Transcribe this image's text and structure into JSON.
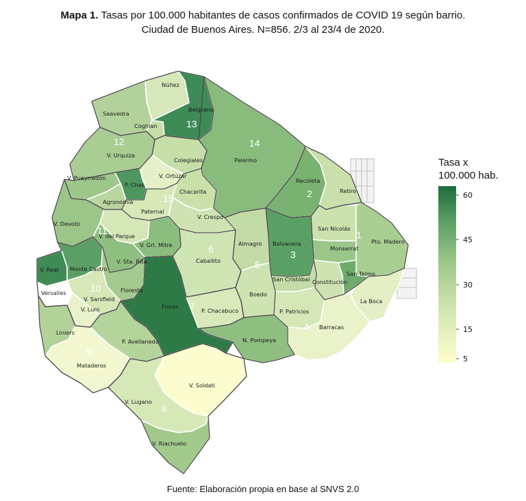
{
  "title": {
    "bold": "Mapa 1.",
    "line1": " Tasas por 100.000 habitantes de casos confirmados de COVID 19 según barrio.",
    "line2": "Ciudad de Buenos Aires. N=856. 2/3 al 23/4 de 2020."
  },
  "legend": {
    "title_line1": "Tasa x",
    "title_line2": "100.000 hab.",
    "ticks": [
      "60",
      "45",
      "30",
      "15",
      "5"
    ],
    "color_low": "#fdfecb",
    "color_high": "#1d6b3c"
  },
  "source": "Fuente: Elaboración propia en base al SNVS 2.0",
  "map": {
    "barrios": [
      {
        "name": "Núñez",
        "color": "#d6e7b9"
      },
      {
        "name": "Saavedra",
        "color": "#b3d29b"
      },
      {
        "name": "Coghlan",
        "color": "#c5dda9"
      },
      {
        "name": "Belgrano",
        "color": "#3e8b57"
      },
      {
        "name": "V. Urquiza",
        "color": "#a9cd93"
      },
      {
        "name": "Colegiales",
        "color": "#c6dfa8"
      },
      {
        "name": "Palermo",
        "color": "#89bb7c"
      },
      {
        "name": "V. Pueyrredón",
        "color": "#9ec68b"
      },
      {
        "name": "V. Ortúzar",
        "color": "#e6f0c7"
      },
      {
        "name": "P. Chas",
        "color": "#4d9660"
      },
      {
        "name": "Chacarita",
        "color": "#c9e0ab"
      },
      {
        "name": "Recoleta",
        "color": "#7ab271"
      },
      {
        "name": "Retiro",
        "color": "#c9e0ad"
      },
      {
        "name": "Agronomía",
        "color": "#b9d69f"
      },
      {
        "name": "Paternal",
        "color": "#d8e8b8"
      },
      {
        "name": "V. Crespo",
        "color": "#cee3b1"
      },
      {
        "name": "V. Devoto",
        "color": "#9bc589"
      },
      {
        "name": "V. del Parque",
        "color": "#d5e6b7"
      },
      {
        "name": "San Nicolás",
        "color": "#cbe1ae"
      },
      {
        "name": "Pto. Madero",
        "color": "#a9ce92"
      },
      {
        "name": "V. Grl. Mitre",
        "color": "#8bbd7e"
      },
      {
        "name": "Almagro",
        "color": "#c2dba6"
      },
      {
        "name": "Balvanera",
        "color": "#5aa065"
      },
      {
        "name": "Monserrat",
        "color": "#9bc68a"
      },
      {
        "name": "Caballito",
        "color": "#cfe4b3"
      },
      {
        "name": "V. Real",
        "color": "#3f8b56"
      },
      {
        "name": "Monte Castro",
        "color": "#5b9f66"
      },
      {
        "name": "V. Sta. Rita",
        "color": "#8fbf80"
      },
      {
        "name": "San Cristóbal",
        "color": "#c3dca8"
      },
      {
        "name": "Constitución",
        "color": "#cee3b2"
      },
      {
        "name": "San Telmo",
        "color": "#6fac6c"
      },
      {
        "name": "Versalles",
        "color": "#ffffff"
      },
      {
        "name": "Floresta",
        "color": "#a4ca8f"
      },
      {
        "name": "V. Sarsfield",
        "color": "#d7e7b8"
      },
      {
        "name": "La Boca",
        "color": "#e4efc6"
      },
      {
        "name": "Flores",
        "color": "#2d7a47"
      },
      {
        "name": "P. Chacabuco",
        "color": "#d9e9ba"
      },
      {
        "name": "Boedo",
        "color": "#cde3b1"
      },
      {
        "name": "V. Luro",
        "color": "#e8f1c9"
      },
      {
        "name": "P. Patricios",
        "color": "#d5e7b7"
      },
      {
        "name": "Liniers",
        "color": "#b2d29a"
      },
      {
        "name": "Barracas",
        "color": "#e9f2c9"
      },
      {
        "name": "P. Avellaneda",
        "color": "#b4d49c"
      },
      {
        "name": "N. Pompeya",
        "color": "#8fbf80"
      },
      {
        "name": "Mataderos",
        "color": "#f2f7d0"
      },
      {
        "name": "V. Soldati",
        "color": "#fbfdcf"
      },
      {
        "name": "V. Lugano",
        "color": "#d7e8b8"
      },
      {
        "name": "V. Riachuelo",
        "color": "#a2c98c"
      }
    ],
    "comunas": [
      "1",
      "2",
      "3",
      "4",
      "5",
      "6",
      "7",
      "8",
      "9",
      "10",
      "11",
      "12",
      "13",
      "14",
      "15"
    ]
  }
}
